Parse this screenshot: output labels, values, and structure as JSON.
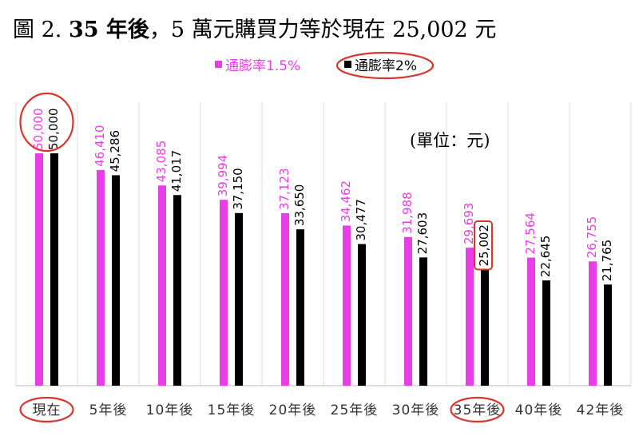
{
  "title": {
    "prefix": "圖 2. ",
    "bold": "35 年後",
    "rest": "，5 萬元購買力等於現在 25,002 元"
  },
  "unit_label": "(單位：元)",
  "chart_data": {
    "type": "bar",
    "categories": [
      "現在",
      "5年後",
      "10年後",
      "15年後",
      "20年後",
      "25年後",
      "30年後",
      "35年後",
      "40年後",
      "42年後"
    ],
    "series": [
      {
        "name": "通膨率1.5%",
        "color": "#e83ee6",
        "values": [
          50000,
          46410,
          43085,
          39994,
          37123,
          34462,
          31988,
          29693,
          27564,
          26755
        ]
      },
      {
        "name": "通膨率2%",
        "color": "#000000",
        "values": [
          50000,
          45286,
          41017,
          37150,
          33650,
          30477,
          27603,
          25002,
          22645,
          21765
        ]
      }
    ],
    "value_labels": {
      "通膨率1.5%": [
        "50,000",
        "46,410",
        "43,085",
        "39,994",
        "37,123",
        "34,462",
        "31,988",
        "29,693",
        "27,564",
        "26,755"
      ],
      "通膨率2%": [
        "50,000",
        "45,286",
        "41,017",
        "37,150",
        "33,650",
        "30,477",
        "27,603",
        "25,002",
        "22,645",
        "21,765"
      ]
    },
    "ylim": [
      0,
      50000
    ],
    "grid": true,
    "legend": "top",
    "highlights": {
      "categories": [
        "現在",
        "35年後"
      ],
      "legend_entry": "通膨率2%",
      "value_circles": [
        "現在"
      ],
      "value_boxes": [
        "35年後"
      ],
      "color": "#d9362b"
    }
  }
}
